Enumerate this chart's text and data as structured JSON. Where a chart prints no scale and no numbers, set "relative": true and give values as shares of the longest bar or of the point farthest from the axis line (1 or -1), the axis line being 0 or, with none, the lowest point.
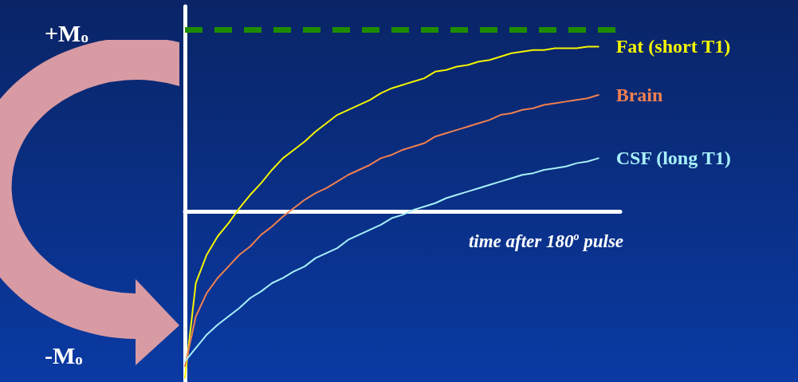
{
  "chart_data": {
    "type": "line",
    "relative": true,
    "xlabel": "time after 180$^{o}$ pulse",
    "categories": [
      null,
      null,
      null,
      null,
      null,
      null,
      null,
      null,
      null,
      null,
      null,
      null,
      null,
      null,
      null,
      null,
      null,
      null,
      null,
      null,
      null,
      null,
      null,
      null,
      null,
      null,
      null,
      null,
      null,
      null,
      null,
      null,
      null,
      null,
      null,
      null,
      null,
      null,
      null,
      null,
      null
    ],
    "grid": false,
    "legend": false,
    "marker": "none",
    "line_style": "solid",
    "annotations": [
      "+M$_{o}$",
      "-M$_{o}$"
    ],
    "ref_lines": [
      {
        "axis": "y",
        "value": 1.09,
        "color": "#1f8c00",
        "line_style": "dashed"
      }
    ],
    "series": [
      {
        "name": "Fat (short T1)",
        "color": "#f5f500",
        "values": [
          -1,
          -0.43,
          -0.26,
          -0.15,
          -0.07,
          0.02,
          0.1,
          0.17,
          0.25,
          0.32,
          0.37,
          0.42,
          0.48,
          0.53,
          0.58,
          0.61,
          0.64,
          0.67,
          0.71,
          0.74,
          0.76,
          0.78,
          0.8,
          0.84,
          0.85,
          0.87,
          0.88,
          0.9,
          0.91,
          0.93,
          0.95,
          0.96,
          0.97,
          0.97,
          0.98,
          0.98,
          0.98,
          0.99,
          0.99,
          null,
          null
        ]
      },
      {
        "name": "Brain",
        "color": "#f08050",
        "values": [
          -0.93,
          -0.63,
          -0.49,
          -0.4,
          -0.33,
          -0.26,
          -0.21,
          -0.14,
          -0.09,
          -0.03,
          0.02,
          0.07,
          0.11,
          0.14,
          0.18,
          0.22,
          0.25,
          0.28,
          0.32,
          0.34,
          0.37,
          0.39,
          0.41,
          0.45,
          0.47,
          0.49,
          0.51,
          0.53,
          0.55,
          0.58,
          0.59,
          0.61,
          0.62,
          0.64,
          0.65,
          0.66,
          0.67,
          0.68,
          0.7,
          null,
          null
        ]
      },
      {
        "name": "CSF (long T1)",
        "color": "#a8f0f8",
        "values": [
          -0.9,
          -0.82,
          -0.74,
          -0.68,
          -0.63,
          -0.58,
          -0.52,
          -0.48,
          -0.43,
          -0.4,
          -0.36,
          -0.33,
          -0.28,
          -0.25,
          -0.22,
          -0.17,
          -0.14,
          -0.11,
          -0.08,
          -0.04,
          -0.02,
          0.01,
          0.03,
          0.05,
          0.08,
          0.1,
          0.12,
          0.14,
          0.16,
          0.18,
          0.2,
          0.22,
          0.23,
          0.25,
          0.26,
          0.27,
          0.29,
          0.3,
          0.32,
          null,
          null
        ]
      }
    ]
  }
}
